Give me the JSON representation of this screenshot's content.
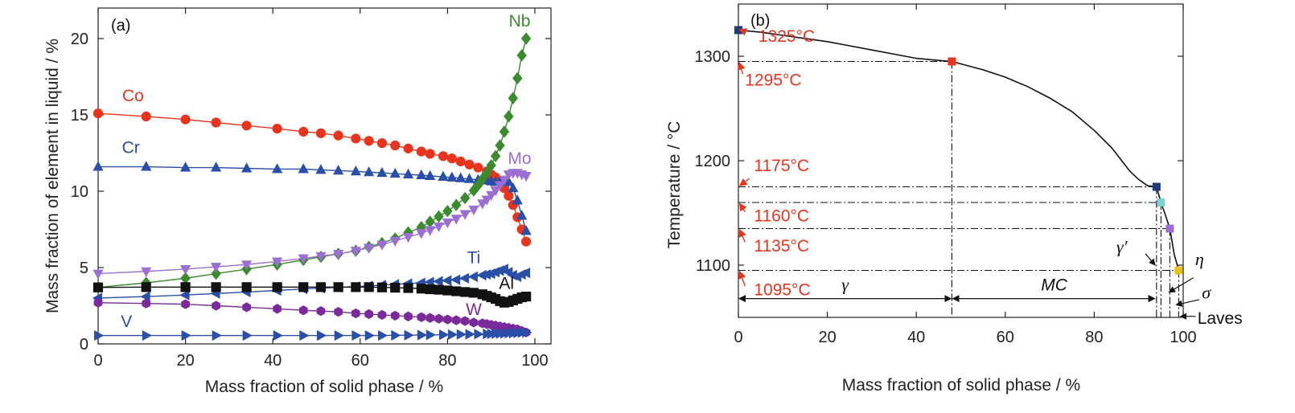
{
  "chart_data": [
    {
      "type": "line",
      "panel_label": "(a)",
      "xlabel": "Mass fraction of solid phase / %",
      "ylabel": "Mass fraction of element in liquid / %",
      "xlim": [
        0,
        100
      ],
      "ylim": [
        0,
        22
      ],
      "x_ticks": [
        0,
        20,
        40,
        60,
        80,
        100
      ],
      "y_ticks": [
        0,
        5,
        10,
        15,
        20
      ],
      "series": [
        {
          "name": "Co",
          "color": "#e8341c",
          "marker": "circle",
          "x": [
            0,
            11,
            20,
            27,
            34,
            41,
            47,
            51,
            55,
            59,
            62,
            65,
            68,
            71,
            74,
            76,
            79,
            81,
            83,
            85,
            87,
            89,
            90,
            91,
            92,
            93,
            94,
            95,
            96,
            97,
            98
          ],
          "y": [
            15.1,
            14.9,
            14.7,
            14.5,
            14.3,
            14.1,
            13.9,
            13.8,
            13.65,
            13.45,
            13.3,
            13.15,
            13.0,
            12.8,
            12.6,
            12.45,
            12.3,
            12.15,
            11.95,
            11.75,
            11.55,
            11.3,
            11.1,
            10.9,
            10.6,
            10.2,
            9.7,
            9.1,
            8.3,
            7.5,
            6.7
          ]
        },
        {
          "name": "Cr",
          "color": "#2a4fa8",
          "marker": "triangle",
          "x": [
            0,
            11,
            20,
            27,
            34,
            41,
            47,
            51,
            55,
            59,
            62,
            65,
            68,
            71,
            74,
            76,
            79,
            81,
            83,
            85,
            87,
            89,
            90,
            91,
            92,
            93,
            94,
            95,
            96,
            97,
            98
          ],
          "y": [
            11.6,
            11.6,
            11.55,
            11.55,
            11.5,
            11.45,
            11.45,
            11.4,
            11.35,
            11.3,
            11.25,
            11.2,
            11.15,
            11.1,
            11.05,
            11.0,
            10.95,
            10.9,
            10.85,
            10.8,
            10.75,
            10.7,
            10.65,
            10.6,
            10.6,
            10.6,
            10.6,
            10.2,
            9.4,
            8.4,
            7.4
          ]
        },
        {
          "name": "Nb",
          "color": "#3a8a2e",
          "marker": "diamond",
          "x": [
            0,
            11,
            20,
            27,
            34,
            41,
            47,
            51,
            55,
            59,
            62,
            65,
            68,
            71,
            74,
            76,
            78,
            80,
            82,
            84,
            86,
            87,
            88,
            89,
            90,
            91,
            92,
            93,
            94,
            95,
            96,
            97,
            98
          ],
          "y": [
            3.7,
            4.0,
            4.3,
            4.6,
            4.9,
            5.2,
            5.5,
            5.7,
            5.9,
            6.1,
            6.35,
            6.6,
            6.9,
            7.3,
            7.65,
            8.0,
            8.35,
            8.7,
            9.1,
            9.55,
            10.05,
            10.4,
            10.8,
            11.2,
            11.7,
            12.3,
            13.0,
            13.9,
            14.9,
            16.1,
            17.4,
            18.9,
            20.0
          ]
        },
        {
          "name": "Mo",
          "color": "#9b6fd2",
          "marker": "triangle-down",
          "x": [
            0,
            11,
            20,
            27,
            34,
            41,
            47,
            51,
            55,
            59,
            62,
            65,
            68,
            71,
            74,
            76,
            78,
            80,
            82,
            84,
            86,
            88,
            89,
            90,
            91,
            92,
            93,
            94,
            95,
            96,
            97,
            98
          ],
          "y": [
            4.6,
            4.75,
            4.9,
            5.05,
            5.2,
            5.4,
            5.6,
            5.75,
            5.9,
            6.1,
            6.3,
            6.5,
            6.75,
            7.0,
            7.25,
            7.45,
            7.7,
            7.95,
            8.2,
            8.5,
            8.8,
            9.2,
            9.45,
            9.75,
            10.05,
            10.4,
            10.75,
            11.1,
            11.2,
            11.2,
            11.1,
            11.0
          ]
        },
        {
          "name": "Ti",
          "color": "#2a4fa8",
          "marker": "triangle-left",
          "x": [
            0,
            11,
            20,
            27,
            34,
            41,
            47,
            51,
            55,
            59,
            62,
            65,
            68,
            71,
            74,
            76,
            78,
            80,
            82,
            84,
            86,
            88,
            89,
            90,
            91,
            92,
            93,
            94,
            95,
            96,
            97,
            98
          ],
          "y": [
            3.0,
            3.1,
            3.2,
            3.3,
            3.4,
            3.5,
            3.6,
            3.65,
            3.7,
            3.75,
            3.8,
            3.85,
            3.9,
            3.95,
            4.0,
            4.05,
            4.1,
            4.15,
            4.2,
            4.3,
            4.4,
            4.5,
            4.55,
            4.6,
            4.7,
            4.8,
            4.9,
            4.7,
            4.5,
            4.4,
            4.55,
            4.65
          ]
        },
        {
          "name": "Al",
          "color": "#111111",
          "marker": "square",
          "x": [
            0,
            11,
            20,
            27,
            34,
            41,
            47,
            51,
            55,
            59,
            62,
            65,
            68,
            71,
            74,
            76,
            78,
            80,
            82,
            84,
            86,
            88,
            89,
            90,
            91,
            92,
            93,
            94,
            95,
            96,
            97,
            98
          ],
          "y": [
            3.7,
            3.72,
            3.72,
            3.72,
            3.72,
            3.72,
            3.72,
            3.72,
            3.72,
            3.72,
            3.72,
            3.7,
            3.68,
            3.66,
            3.62,
            3.58,
            3.55,
            3.5,
            3.45,
            3.4,
            3.35,
            3.25,
            3.15,
            3.05,
            2.95,
            2.8,
            2.7,
            2.75,
            2.85,
            2.95,
            3.05,
            3.1
          ]
        },
        {
          "name": "W",
          "color": "#7a2a9a",
          "marker": "hexagon",
          "x": [
            0,
            11,
            20,
            27,
            34,
            41,
            47,
            51,
            55,
            59,
            62,
            65,
            68,
            71,
            74,
            76,
            78,
            80,
            82,
            84,
            86,
            88,
            89,
            90,
            91,
            92,
            93,
            94,
            95,
            96,
            97,
            98
          ],
          "y": [
            2.7,
            2.65,
            2.6,
            2.5,
            2.4,
            2.3,
            2.2,
            2.15,
            2.1,
            2.0,
            1.95,
            1.9,
            1.85,
            1.8,
            1.75,
            1.7,
            1.65,
            1.6,
            1.55,
            1.5,
            1.4,
            1.35,
            1.3,
            1.25,
            1.2,
            1.15,
            1.1,
            1.05,
            1.0,
            0.95,
            0.85,
            0.75
          ]
        },
        {
          "name": "V",
          "color": "#2a4fa8",
          "marker": "triangle-right",
          "x": [
            0,
            11,
            20,
            27,
            34,
            41,
            47,
            51,
            55,
            59,
            62,
            65,
            68,
            71,
            74,
            76,
            79,
            81,
            83,
            85,
            87,
            89,
            90,
            91,
            92,
            93,
            94,
            95,
            96,
            97,
            98
          ],
          "y": [
            0.55,
            0.55,
            0.55,
            0.55,
            0.55,
            0.55,
            0.55,
            0.55,
            0.55,
            0.55,
            0.55,
            0.55,
            0.56,
            0.57,
            0.58,
            0.59,
            0.6,
            0.61,
            0.62,
            0.63,
            0.64,
            0.65,
            0.66,
            0.67,
            0.68,
            0.69,
            0.7,
            0.7,
            0.72,
            0.74,
            0.75
          ]
        }
      ],
      "series_labels": [
        {
          "text": "Nb",
          "x": 96.5,
          "y": 20.8
        },
        {
          "text": "Co",
          "x": 8,
          "y": 15.9
        },
        {
          "text": "Cr",
          "x": 7.5,
          "y": 12.5
        },
        {
          "text": "Mo",
          "x": 96.5,
          "y": 11.8
        },
        {
          "text": "Ti",
          "x": 86,
          "y": 5.3
        },
        {
          "text": "Al",
          "x": 93.5,
          "y": 3.6
        },
        {
          "text": "W",
          "x": 86,
          "y": 1.9
        },
        {
          "text": "V",
          "x": 6.5,
          "y": 1.1
        }
      ]
    },
    {
      "type": "line",
      "panel_label": "(b)",
      "xlabel": "Mass fraction of solid phase / %",
      "ylabel": "Temperature / °C",
      "xlim": [
        0,
        100
      ],
      "ylim": [
        1050,
        1350
      ],
      "x_ticks": [
        0,
        20,
        40,
        60,
        80,
        100
      ],
      "y_ticks": [
        1100,
        1200,
        1300
      ],
      "curve": {
        "x": [
          0,
          5,
          10,
          15,
          20,
          25,
          30,
          35,
          40,
          45,
          48,
          55,
          60,
          65,
          70,
          75,
          80,
          84,
          88,
          90,
          92,
          94,
          95,
          96,
          97,
          98,
          99
        ],
        "y": [
          1325,
          1323,
          1320,
          1317,
          1314,
          1310,
          1306,
          1302,
          1298,
          1296,
          1295,
          1287,
          1280,
          1271,
          1260,
          1247,
          1229,
          1212,
          1190,
          1182,
          1176,
          1175,
          1160,
          1148,
          1135,
          1110,
          1095
        ]
      },
      "markers": [
        {
          "x": 0,
          "y": 1325,
          "color": "#1f3a7a"
        },
        {
          "x": 48,
          "y": 1295,
          "color": "#e8341c"
        },
        {
          "x": 94,
          "y": 1175,
          "color": "#1f3a7a"
        },
        {
          "x": 95,
          "y": 1160,
          "color": "#7fd0d0"
        },
        {
          "x": 97,
          "y": 1135,
          "color": "#9b6fd2"
        },
        {
          "x": 99,
          "y": 1095,
          "color": "#e8c21c"
        }
      ],
      "temperature_labels": [
        "1325°C",
        "1295°C",
        "1175°C",
        "1160°C",
        "1135°C",
        "1095°C"
      ],
      "phase_labels": {
        "gamma": "γ",
        "mc": "MC",
        "gamma_prime": "γ′",
        "eta": "η",
        "sigma": "σ",
        "laves": "Laves"
      },
      "annotation_color": "#e8341c"
    }
  ]
}
